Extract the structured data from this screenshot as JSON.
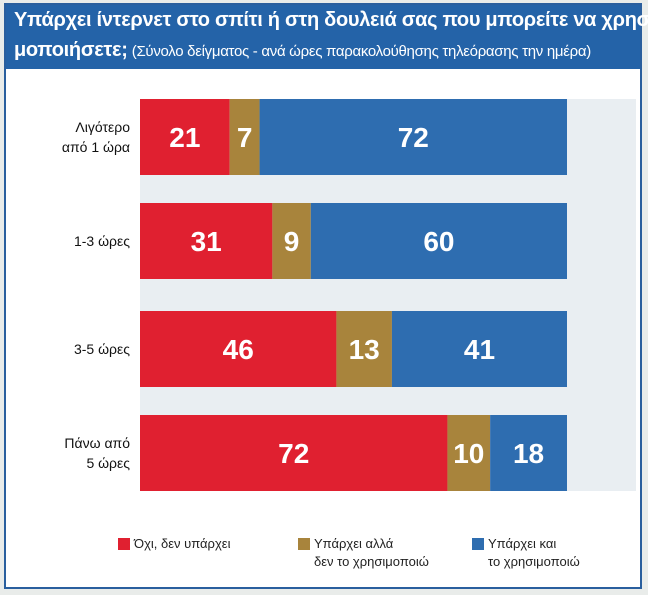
{
  "title": {
    "line1": "Υπάρχει ίντερνετ στο σπίτι ή στη δουλειά σας που μπορείτε να χρησι-",
    "line2_bold": "μοποιήσετε;",
    "line2_sub": "(Σύνολο δείγματος - ανά ώρες παρακολούθησης τηλεόρασης την ημέρα)"
  },
  "colors": {
    "header_bg": "#2463a8",
    "no_internet": "#e02030",
    "has_not_using": "#a8843c",
    "has_using": "#2e6db0",
    "plot_bg": "#e9eef2"
  },
  "chart_data": {
    "type": "bar",
    "orientation": "horizontal",
    "stacked": true,
    "categories": [
      [
        "Λιγότερο",
        "από 1 ώρα"
      ],
      [
        "1-3 ώρες"
      ],
      [
        "3-5 ώρες"
      ],
      [
        "Πάνω από",
        "5 ώρες"
      ]
    ],
    "series": [
      {
        "name": "Όχι, δεν υπάρχει",
        "values": [
          21,
          31,
          46,
          72
        ],
        "color": "#e02030"
      },
      {
        "name": "Υπάρχει αλλά δεν το χρησιμοποιώ",
        "values": [
          7,
          9,
          13,
          10
        ],
        "color": "#a8843c"
      },
      {
        "name": "Υπάρχει και το χρησιμοποιώ",
        "values": [
          72,
          60,
          41,
          18
        ],
        "color": "#2e6db0"
      }
    ],
    "xlim": [
      0,
      100
    ],
    "grid": false,
    "legend_position": "bottom"
  },
  "legend": [
    {
      "lines": [
        "Όχι, δεν υπάρχει"
      ],
      "color": "#e02030"
    },
    {
      "lines": [
        "Υπάρχει αλλά",
        "δεν το χρησιμοποιώ"
      ],
      "color": "#a8843c"
    },
    {
      "lines": [
        "Υπάρχει και",
        "το χρησιμοποιώ"
      ],
      "color": "#2e6db0"
    }
  ]
}
